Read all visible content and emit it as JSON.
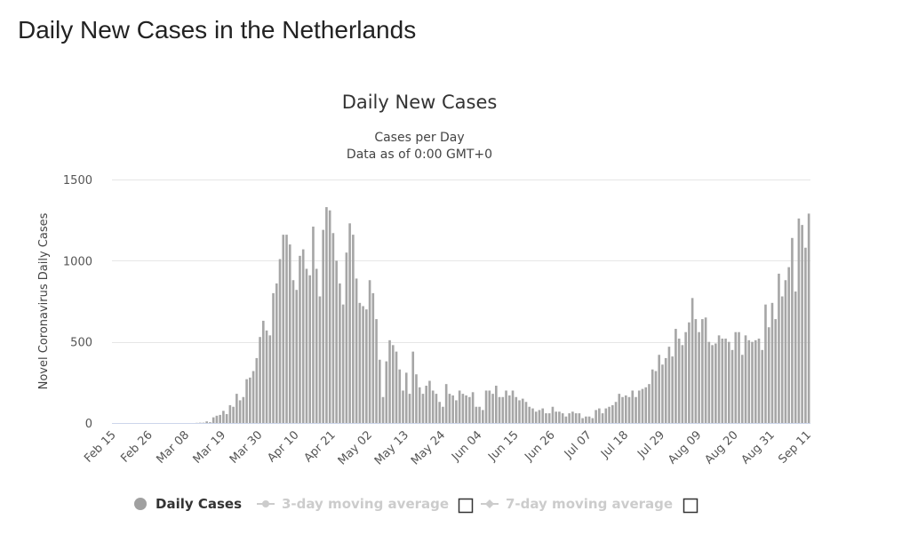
{
  "page": {
    "title": "Daily New Cases in the Netherlands"
  },
  "chart_data": {
    "type": "bar",
    "title": "Daily New Cases",
    "subtitle": "Cases per Day",
    "subtitle2": "Data as of 0:00 GMT+0",
    "ylabel": "Novel Coronavirus Daily Cases",
    "xlabel": "",
    "ylim": [
      0,
      1500
    ],
    "yticks": [
      "0",
      "500",
      "1000",
      "1500"
    ],
    "grid": true,
    "x_start": "Feb 15",
    "x_tick_labels": [
      "Feb 15",
      "Feb 26",
      "Mar 08",
      "Mar 19",
      "Mar 30",
      "Apr 10",
      "Apr 21",
      "May 02",
      "May 13",
      "May 24",
      "Jun 04",
      "Jun 15",
      "Jun 26",
      "Jul 07",
      "Jul 18",
      "Jul 29",
      "Aug 09",
      "Aug 20",
      "Aug 31",
      "Sep 11"
    ],
    "bar_color": "#a6a6a6",
    "legend_position": "bottom",
    "series": [
      {
        "name": "Daily Cases",
        "values": [
          0,
          0,
          0,
          0,
          0,
          0,
          0,
          0,
          0,
          0,
          0,
          0,
          0,
          0,
          0,
          0,
          0,
          0,
          0,
          0,
          0,
          0,
          0,
          0,
          0,
          1,
          2,
          2,
          10,
          5,
          35,
          45,
          50,
          75,
          55,
          110,
          100,
          180,
          140,
          160,
          270,
          280,
          320,
          400,
          530,
          630,
          570,
          540,
          800,
          860,
          1010,
          1160,
          1160,
          1100,
          880,
          820,
          1030,
          1070,
          950,
          910,
          1210,
          950,
          780,
          1190,
          1330,
          1310,
          1170,
          1000,
          860,
          730,
          1050,
          1230,
          1160,
          890,
          740,
          720,
          700,
          880,
          800,
          640,
          390,
          160,
          380,
          510,
          480,
          440,
          330,
          200,
          310,
          180,
          440,
          300,
          220,
          180,
          230,
          260,
          200,
          180,
          130,
          100,
          240,
          180,
          170,
          140,
          200,
          180,
          170,
          160,
          190,
          100,
          100,
          80,
          200,
          200,
          180,
          230,
          160,
          160,
          200,
          170,
          200,
          160,
          140,
          150,
          130,
          100,
          90,
          70,
          80,
          90,
          60,
          60,
          100,
          70,
          70,
          60,
          40,
          60,
          70,
          60,
          60,
          30,
          40,
          40,
          30,
          80,
          90,
          60,
          90,
          100,
          110,
          130,
          180,
          160,
          170,
          160,
          200,
          160,
          200,
          210,
          220,
          240,
          330,
          320,
          420,
          360,
          400,
          470,
          410,
          580,
          520,
          480,
          560,
          620,
          770,
          640,
          560,
          640,
          650,
          500,
          480,
          490,
          540,
          520,
          520,
          500,
          450,
          560,
          560,
          420,
          540,
          510,
          500,
          510,
          520,
          450,
          730,
          590,
          740,
          640,
          920,
          780,
          880,
          960,
          1140,
          810,
          1260,
          1220,
          1080,
          1290
        ]
      },
      {
        "name": "3-day moving average",
        "values": []
      },
      {
        "name": "7-day moving average",
        "values": []
      }
    ]
  }
}
